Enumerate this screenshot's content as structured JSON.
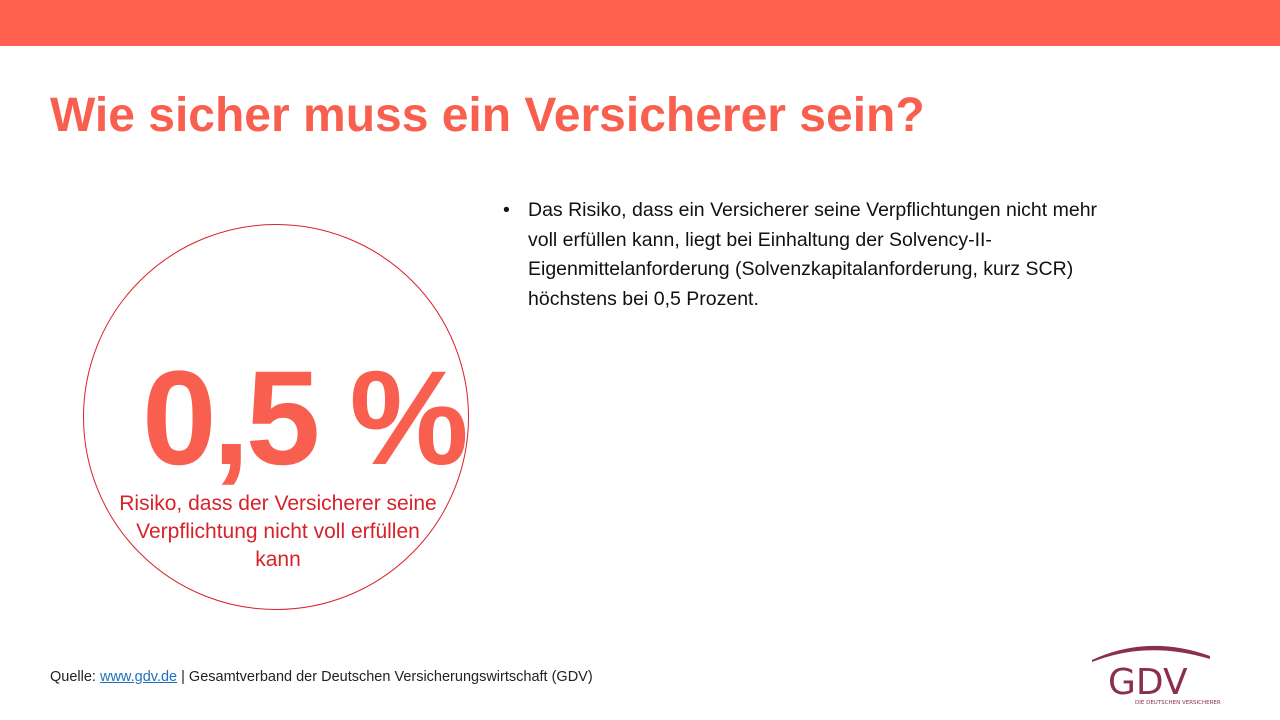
{
  "slide": {
    "title": "Wie sicher muss ein Versicherer sein?",
    "highlight": {
      "value": "0,5 %",
      "caption": "Risiko, dass der Versicherer seine Verpflichtung nicht voll erfüllen kann"
    },
    "bullets": [
      "Das Risiko, dass ein Versicherer seine Verpflichtungen nicht mehr voll erfüllen kann, liegt bei Einhaltung der Solvency-II-Eigenmittelanforderung (Solvenzkapitalanforderung, kurz SCR) höchstens bei 0,5 Prozent."
    ],
    "bullet_symbol": "•"
  },
  "footer": {
    "source_prefix": "Quelle: ",
    "source_link": "www.gdv.de",
    "source_suffix": " | Gesamtverband der Deutschen Versicherungswirtschaft (GDV)"
  },
  "logo": {
    "text": "GDV",
    "tagline": "DIE DEUTSCHEN VERSICHERER"
  },
  "colors": {
    "accent": "#ff5f4d",
    "title": "#f95f4f",
    "circle": "#d8222a",
    "logo": "#8a2f50"
  }
}
